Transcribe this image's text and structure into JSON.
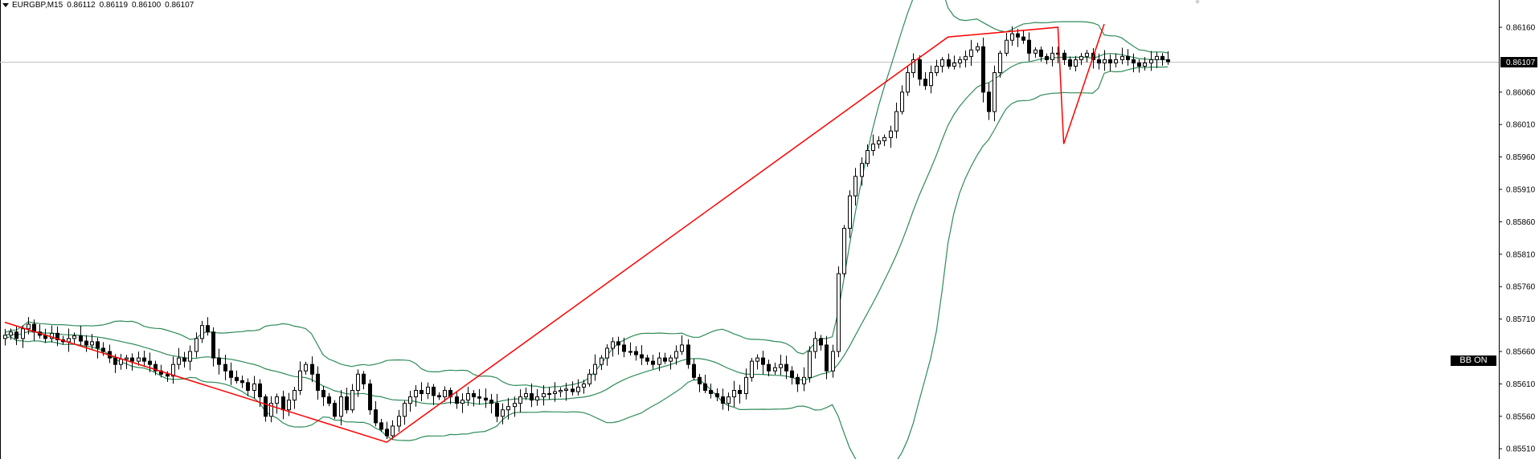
{
  "header": {
    "symbol": "EURGBP,M15",
    "open": "0.86112",
    "high": "0.86119",
    "low": "0.86100",
    "close": "0.86107"
  },
  "current_price_label": "0.86107",
  "bb_button_label": "BB ON",
  "colors": {
    "background": "#ffffff",
    "candle": "#000000",
    "bands": "#2e8b57",
    "trendline": "#ff0000",
    "price_line": "#c0c0c0"
  },
  "chart_data": {
    "type": "candlestick",
    "symbol": "EURGBP",
    "timeframe": "M15",
    "indicator": "Bollinger Bands",
    "ylim": [
      0.855,
      0.862
    ],
    "y_ticks": [
      "0.86160",
      "0.86107",
      "0.86060",
      "0.86010",
      "0.85960",
      "0.85910",
      "0.85860",
      "0.85810",
      "0.85760",
      "0.85710",
      "0.85660",
      "0.85610",
      "0.85560",
      "0.85510"
    ],
    "current_price": 0.86107,
    "close_series": [
      0.85685,
      0.8569,
      0.8568,
      0.85695,
      0.85702,
      0.8569,
      0.85685,
      0.8568,
      0.85688,
      0.85678,
      0.85675,
      0.8568,
      0.85684,
      0.85676,
      0.8567,
      0.85675,
      0.85665,
      0.8566,
      0.8565,
      0.8564,
      0.85648,
      0.8565,
      0.85645,
      0.8565,
      0.85645,
      0.8564,
      0.8563,
      0.85625,
      0.85622,
      0.8564,
      0.8565,
      0.85645,
      0.8566,
      0.8568,
      0.857,
      0.8569,
      0.8565,
      0.8564,
      0.8563,
      0.8562,
      0.85615,
      0.85612,
      0.856,
      0.8561,
      0.8559,
      0.8556,
      0.8558,
      0.8559,
      0.8557,
      0.85585,
      0.856,
      0.8563,
      0.8564,
      0.85625,
      0.856,
      0.8559,
      0.8558,
      0.8556,
      0.8559,
      0.8557,
      0.856,
      0.85625,
      0.8561,
      0.8557,
      0.8555,
      0.8554,
      0.8553,
      0.85545,
      0.8556,
      0.8558,
      0.8559,
      0.856,
      0.85595,
      0.85605,
      0.85592,
      0.8559,
      0.856,
      0.8559,
      0.8558,
      0.85585,
      0.85595,
      0.8559,
      0.85588,
      0.85585,
      0.8558,
      0.8556,
      0.8557,
      0.85575,
      0.8558,
      0.8559,
      0.85595,
      0.85585,
      0.8559,
      0.85595,
      0.85595,
      0.85598,
      0.856,
      0.85602,
      0.85598,
      0.85605,
      0.8561,
      0.85625,
      0.8564,
      0.8565,
      0.85665,
      0.85675,
      0.8567,
      0.8566,
      0.8566,
      0.85655,
      0.8565,
      0.85645,
      0.8564,
      0.8565,
      0.85645,
      0.8565,
      0.8566,
      0.8567,
      0.8564,
      0.8562,
      0.8561,
      0.856,
      0.85595,
      0.8559,
      0.8558,
      0.8559,
      0.856,
      0.85595,
      0.8562,
      0.85645,
      0.8565,
      0.8564,
      0.8563,
      0.85635,
      0.8564,
      0.8563,
      0.8562,
      0.8561,
      0.8562,
      0.8566,
      0.8568,
      0.8567,
      0.8563,
      0.8566,
      0.8578,
      0.8585,
      0.859,
      0.8593,
      0.8595,
      0.8597,
      0.8598,
      0.85985,
      0.8599,
      0.86,
      0.8603,
      0.8606,
      0.8609,
      0.8611,
      0.8608,
      0.8607,
      0.8609,
      0.861,
      0.8611,
      0.861,
      0.86105,
      0.8611,
      0.86115,
      0.86125,
      0.8613,
      0.8606,
      0.8603,
      0.8609,
      0.8612,
      0.8614,
      0.8615,
      0.86145,
      0.8614,
      0.8612,
      0.86125,
      0.86115,
      0.8611,
      0.8612,
      0.8612,
      0.8611,
      0.861,
      0.8611,
      0.86115,
      0.8612,
      0.8611,
      0.86105,
      0.8611,
      0.86105,
      0.8611,
      0.86115,
      0.8611,
      0.86105,
      0.861,
      0.86105,
      0.8611,
      0.86115,
      0.8611,
      0.86107
    ],
    "zigzag": [
      {
        "bar": 0,
        "price": 0.85705
      },
      {
        "bar": 66,
        "price": 0.8552
      },
      {
        "bar": 163,
        "price": 0.86145
      },
      {
        "bar": 182,
        "price": 0.8616
      },
      {
        "bar": 183,
        "price": 0.8598
      },
      {
        "bar": 190,
        "price": 0.86165
      }
    ]
  }
}
